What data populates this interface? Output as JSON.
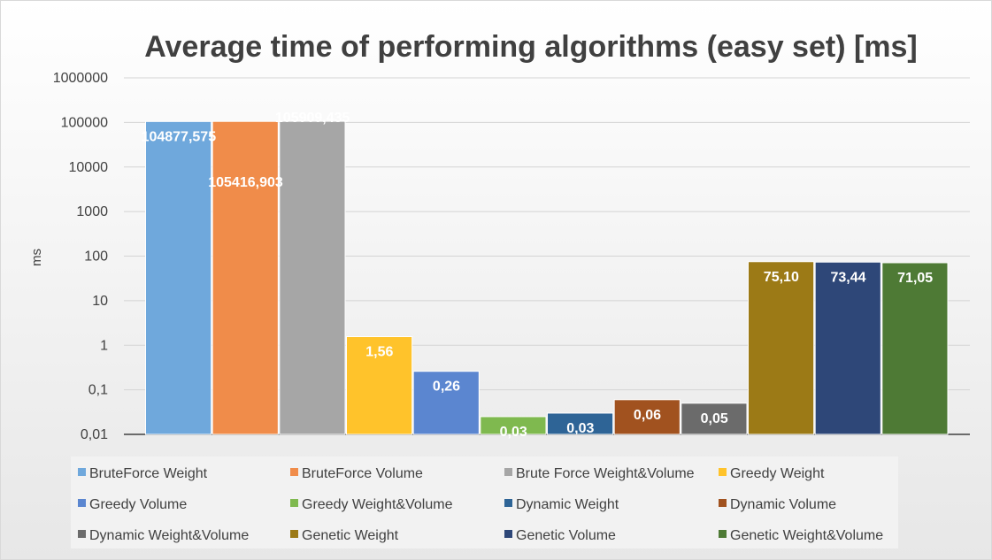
{
  "chart_data": {
    "type": "bar",
    "title": "Average time of performing algorithms (easy set) [ms]",
    "ylabel": "ms",
    "xlabel": "",
    "yscale": "log",
    "ylim": [
      0.01,
      1000000
    ],
    "y_tick_labels": [
      "0,01",
      "0,1",
      "1",
      "10",
      "100",
      "1000",
      "10000",
      "100000",
      "1000000"
    ],
    "grid": true,
    "legend_position": "bottom",
    "series": [
      {
        "name": "BruteForce Weight",
        "value": 104877.575,
        "label": "104877,575",
        "color": "#6fa8dc"
      },
      {
        "name": "BruteForce Volume",
        "value": 105416.903,
        "label": "105416,903",
        "color": "#f08c4a"
      },
      {
        "name": "Brute Force Weight&Volume",
        "value": 105909.435,
        "label": "105909,435",
        "color": "#a6a6a6"
      },
      {
        "name": "Greedy Weight",
        "value": 1.56,
        "label": "1,56",
        "color": "#ffc32b"
      },
      {
        "name": "Greedy Volume",
        "value": 0.26,
        "label": "0,26",
        "color": "#5b86d0"
      },
      {
        "name": "Greedy Weight&Volume",
        "value": 0.025,
        "label": "0,03",
        "color": "#7fb94f"
      },
      {
        "name": "Dynamic Weight",
        "value": 0.03,
        "label": "0,03",
        "color": "#2e6496"
      },
      {
        "name": "Dynamic Volume",
        "value": 0.06,
        "label": "0,06",
        "color": "#a1521f"
      },
      {
        "name": "Dynamic Weight&Volume",
        "value": 0.05,
        "label": "0,05",
        "color": "#6b6b6b"
      },
      {
        "name": "Genetic Weight",
        "value": 75.1,
        "label": "75,10",
        "color": "#9c7a16"
      },
      {
        "name": "Genetic Volume",
        "value": 73.44,
        "label": "73,44",
        "color": "#2e4778"
      },
      {
        "name": "Genetic Weight&Volume",
        "value": 71.05,
        "label": "71,05",
        "color": "#4e7a35"
      }
    ]
  }
}
